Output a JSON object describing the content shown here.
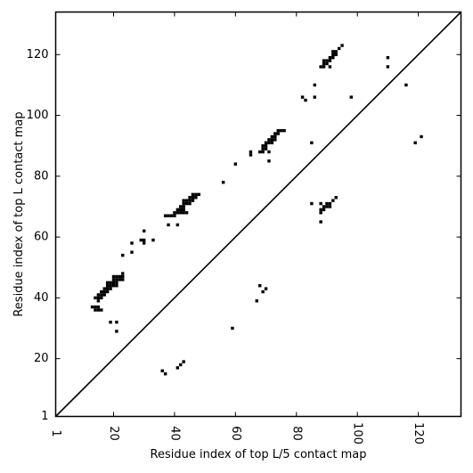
{
  "chart_data": {
    "type": "scatter",
    "title": "",
    "xlabel": "Residue index of top L/5 contact map",
    "ylabel": "Residue index of top L contact map",
    "xlim": [
      1,
      134
    ],
    "ylim": [
      1,
      134
    ],
    "xticks": [
      1,
      20,
      40,
      60,
      80,
      100,
      120
    ],
    "yticks": [
      1,
      20,
      40,
      60,
      80,
      100,
      120
    ],
    "diagonal": true,
    "marker_color": "#000000",
    "points_lower_L5": [
      [
        36,
        16
      ],
      [
        37,
        15
      ],
      [
        41,
        17
      ],
      [
        42,
        18
      ],
      [
        43,
        19
      ],
      [
        59,
        30
      ],
      [
        67,
        39
      ],
      [
        68,
        44
      ],
      [
        69,
        42
      ],
      [
        70,
        43
      ],
      [
        85,
        71
      ],
      [
        88,
        65
      ],
      [
        88,
        68
      ],
      [
        88,
        69
      ],
      [
        88,
        71
      ],
      [
        89,
        69
      ],
      [
        89,
        70
      ],
      [
        90,
        70
      ],
      [
        90,
        71
      ],
      [
        91,
        70
      ],
      [
        91,
        71
      ],
      [
        92,
        72
      ],
      [
        93,
        73
      ],
      [
        98,
        106
      ],
      [
        110,
        116
      ],
      [
        110,
        119
      ],
      [
        116,
        110
      ],
      [
        119,
        91
      ],
      [
        121,
        93
      ]
    ],
    "points_upper_L": [
      [
        13,
        37
      ],
      [
        14,
        36
      ],
      [
        14,
        37
      ],
      [
        14,
        40
      ],
      [
        15,
        36
      ],
      [
        15,
        37
      ],
      [
        15,
        39
      ],
      [
        15,
        40
      ],
      [
        15,
        41
      ],
      [
        16,
        36
      ],
      [
        16,
        40
      ],
      [
        16,
        41
      ],
      [
        16,
        42
      ],
      [
        17,
        41
      ],
      [
        17,
        42
      ],
      [
        17,
        43
      ],
      [
        18,
        42
      ],
      [
        18,
        43
      ],
      [
        18,
        44
      ],
      [
        18,
        45
      ],
      [
        19,
        32
      ],
      [
        19,
        43
      ],
      [
        19,
        44
      ],
      [
        19,
        45
      ],
      [
        20,
        44
      ],
      [
        20,
        45
      ],
      [
        20,
        46
      ],
      [
        20,
        47
      ],
      [
        21,
        29
      ],
      [
        21,
        32
      ],
      [
        21,
        44
      ],
      [
        21,
        45
      ],
      [
        21,
        46
      ],
      [
        21,
        47
      ],
      [
        22,
        46
      ],
      [
        22,
        47
      ],
      [
        23,
        46
      ],
      [
        23,
        47
      ],
      [
        23,
        48
      ],
      [
        23,
        54
      ],
      [
        26,
        55
      ],
      [
        26,
        58
      ],
      [
        29,
        59
      ],
      [
        30,
        58
      ],
      [
        30,
        59
      ],
      [
        30,
        62
      ],
      [
        33,
        59
      ],
      [
        37,
        67
      ],
      [
        38,
        64
      ],
      [
        38,
        67
      ],
      [
        39,
        67
      ],
      [
        40,
        67
      ],
      [
        40,
        68
      ],
      [
        41,
        64
      ],
      [
        41,
        68
      ],
      [
        41,
        69
      ],
      [
        42,
        68
      ],
      [
        42,
        69
      ],
      [
        42,
        70
      ],
      [
        43,
        68
      ],
      [
        43,
        69
      ],
      [
        43,
        70
      ],
      [
        43,
        71
      ],
      [
        43,
        72
      ],
      [
        44,
        68
      ],
      [
        44,
        71
      ],
      [
        44,
        72
      ],
      [
        45,
        71
      ],
      [
        45,
        72
      ],
      [
        45,
        73
      ],
      [
        46,
        72
      ],
      [
        46,
        73
      ],
      [
        46,
        74
      ],
      [
        47,
        73
      ],
      [
        47,
        74
      ],
      [
        48,
        74
      ],
      [
        56,
        78
      ],
      [
        60,
        84
      ],
      [
        65,
        87
      ],
      [
        65,
        88
      ],
      [
        68,
        88
      ],
      [
        69,
        88
      ],
      [
        69,
        89
      ],
      [
        69,
        90
      ],
      [
        70,
        89
      ],
      [
        70,
        90
      ],
      [
        70,
        91
      ],
      [
        71,
        85
      ],
      [
        71,
        88
      ],
      [
        71,
        91
      ],
      [
        71,
        92
      ],
      [
        72,
        91
      ],
      [
        72,
        92
      ],
      [
        72,
        93
      ],
      [
        73,
        92
      ],
      [
        73,
        93
      ],
      [
        73,
        94
      ],
      [
        74,
        94
      ],
      [
        74,
        95
      ],
      [
        75,
        95
      ],
      [
        76,
        95
      ],
      [
        82,
        106
      ],
      [
        83,
        105
      ],
      [
        85,
        91
      ],
      [
        86,
        106
      ],
      [
        86,
        110
      ],
      [
        88,
        116
      ],
      [
        89,
        116
      ],
      [
        89,
        117
      ],
      [
        89,
        118
      ],
      [
        90,
        117
      ],
      [
        90,
        118
      ],
      [
        91,
        116
      ],
      [
        91,
        118
      ],
      [
        91,
        119
      ],
      [
        92,
        119
      ],
      [
        92,
        120
      ],
      [
        92,
        121
      ],
      [
        93,
        120
      ],
      [
        93,
        121
      ],
      [
        94,
        122
      ],
      [
        95,
        123
      ]
    ]
  }
}
